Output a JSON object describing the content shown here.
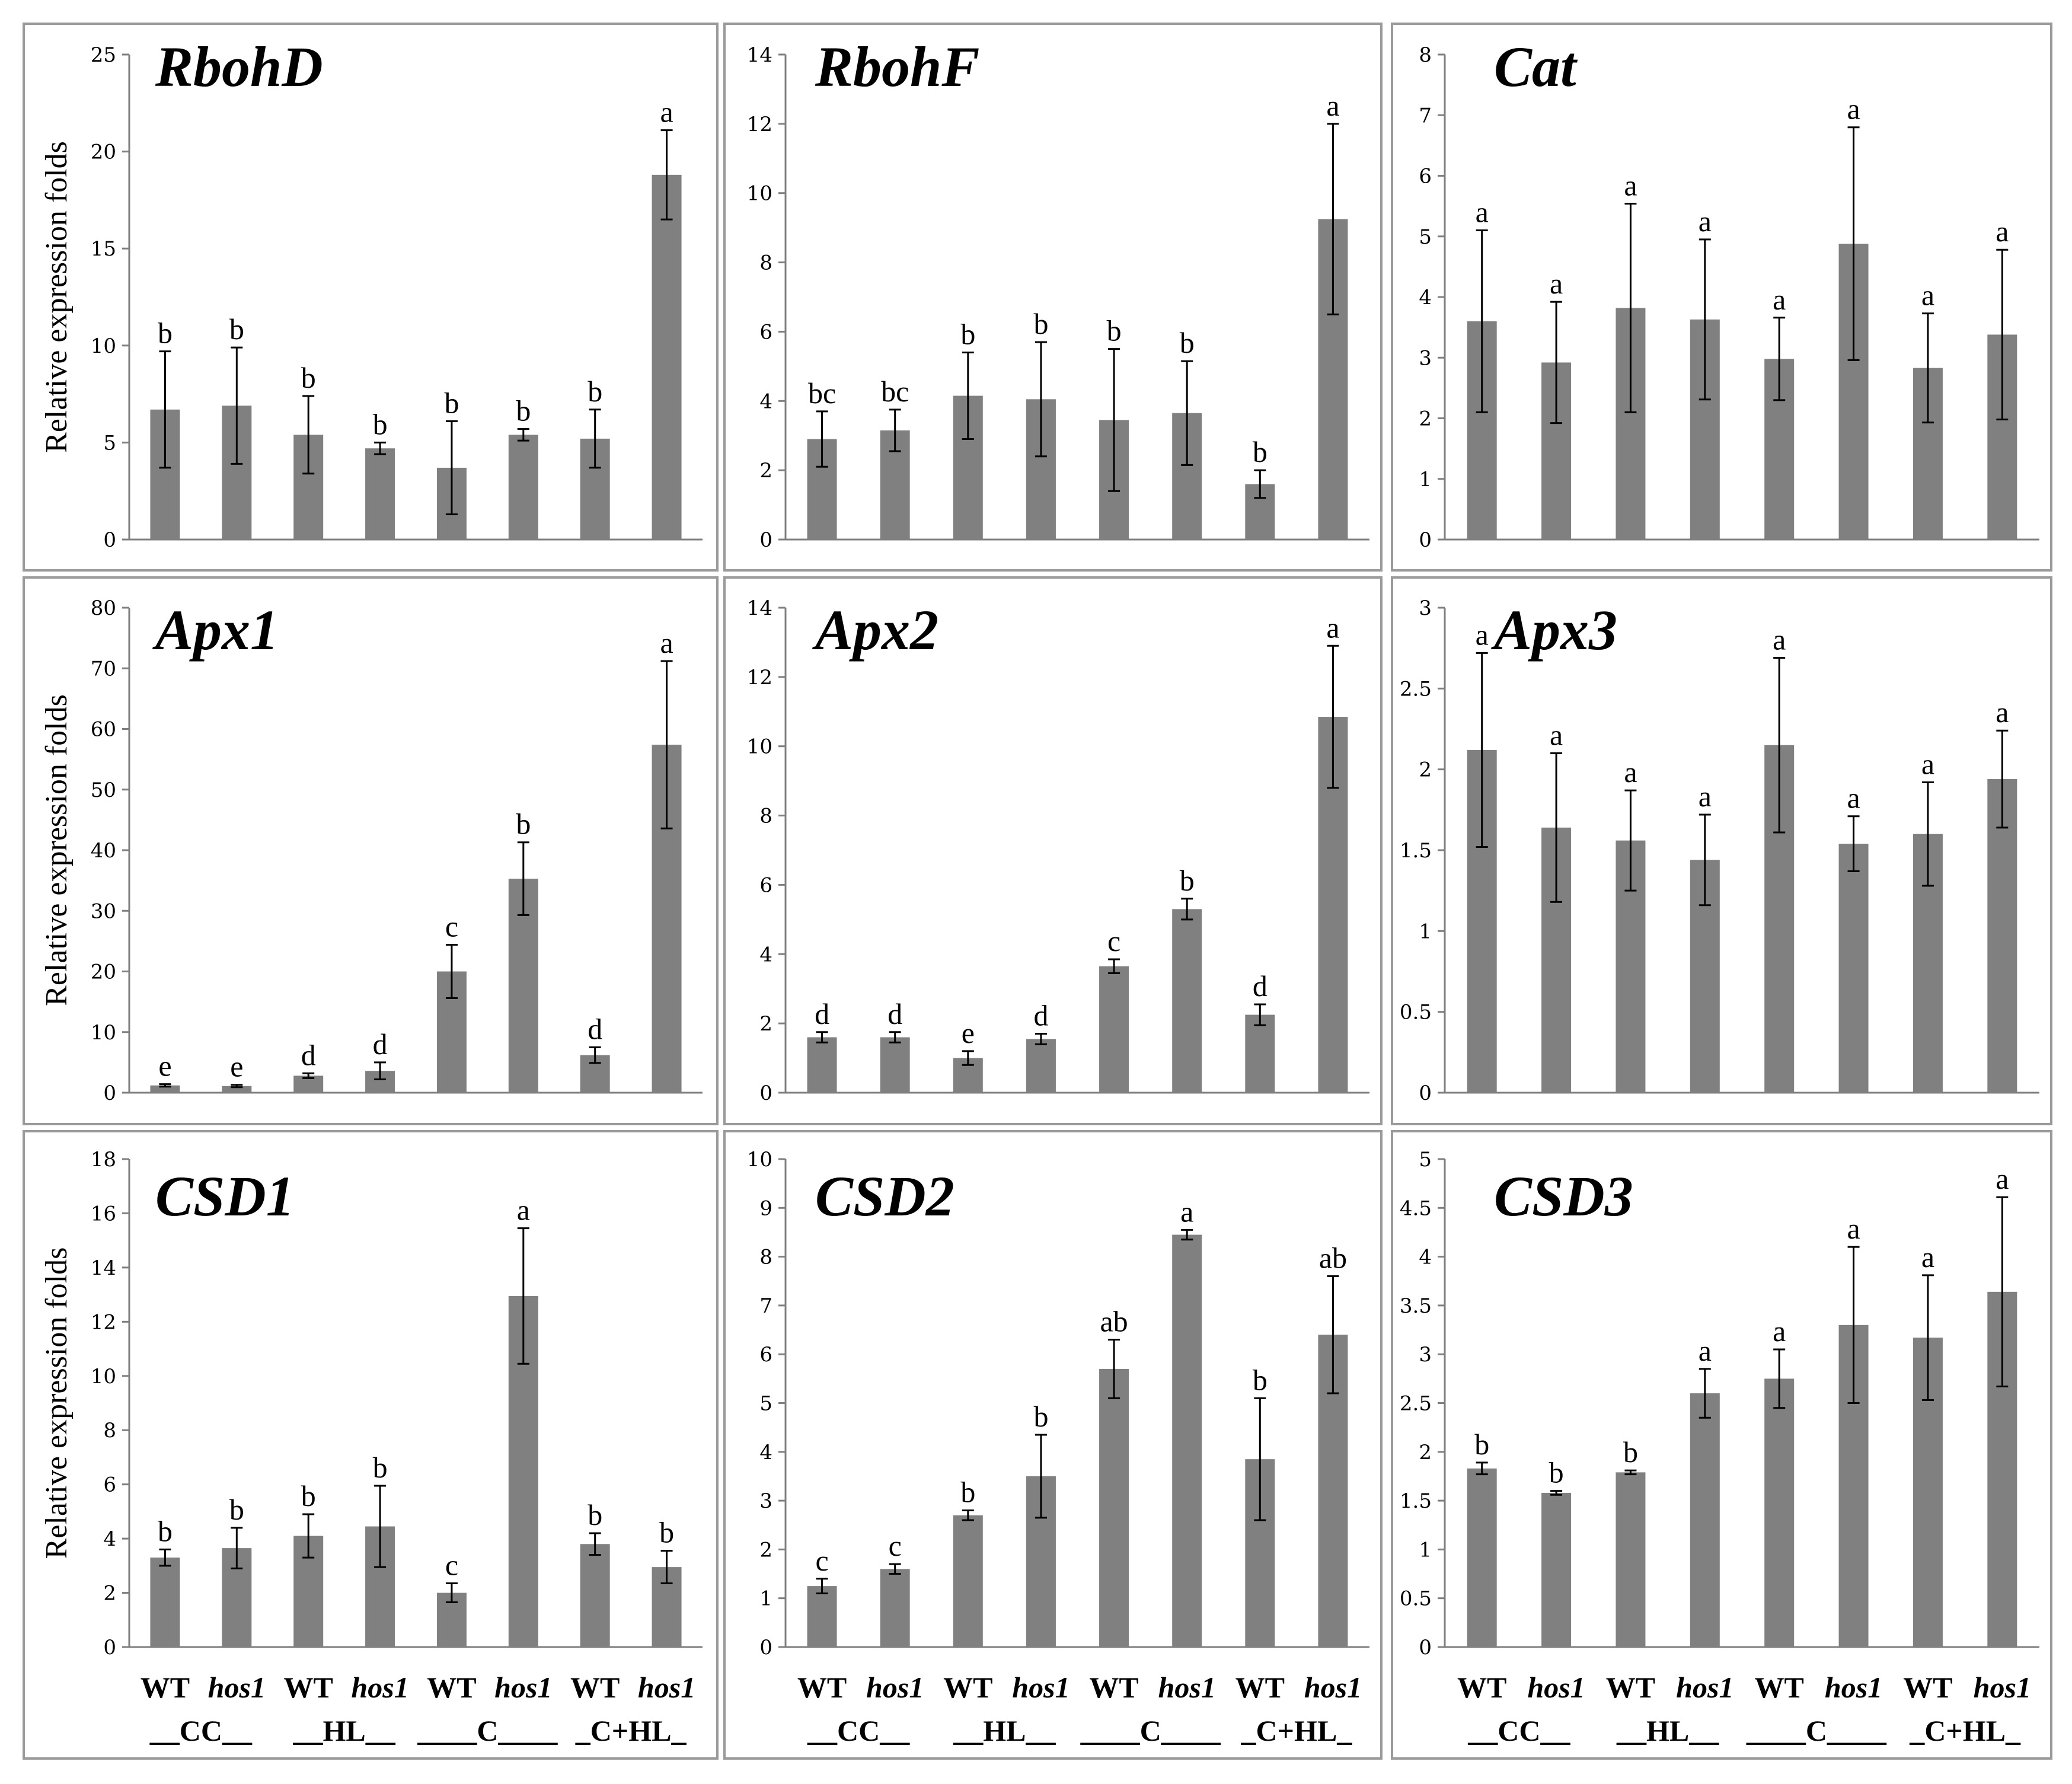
{
  "chart_data": [
    {
      "type": "bar",
      "title": "RbohD",
      "ylabel": "Relative expression folds",
      "ylim": [
        0,
        25
      ],
      "yticks": [
        "0",
        "5",
        "10",
        "15",
        "20",
        "25"
      ],
      "values": [
        6.7,
        6.9,
        5.4,
        4.7,
        3.7,
        5.4,
        5.2,
        18.8
      ],
      "errors": [
        3.0,
        3.0,
        2.0,
        0.3,
        2.4,
        0.3,
        1.5,
        2.3
      ],
      "letters": [
        "b",
        "b",
        "b",
        "b",
        "b",
        "b",
        "b",
        "a"
      ]
    },
    {
      "type": "bar",
      "title": "RbohF",
      "ylabel": "",
      "ylim": [
        0,
        14
      ],
      "yticks": [
        "0",
        "2",
        "4",
        "6",
        "8",
        "10",
        "12",
        "14"
      ],
      "values": [
        2.9,
        3.15,
        4.15,
        4.05,
        3.45,
        3.65,
        1.6,
        9.25
      ],
      "errors": [
        0.8,
        0.6,
        1.25,
        1.65,
        2.05,
        1.5,
        0.4,
        2.75
      ],
      "letters": [
        "bc",
        "bc",
        "b",
        "b",
        "b",
        "b",
        "b",
        "a"
      ]
    },
    {
      "type": "bar",
      "title": "Cat",
      "ylabel": "",
      "ylim": [
        0,
        8
      ],
      "yticks": [
        "0",
        "1",
        "2",
        "3",
        "4",
        "5",
        "6",
        "7",
        "8"
      ],
      "values": [
        3.6,
        2.92,
        3.82,
        3.63,
        2.98,
        4.88,
        2.83,
        3.38
      ],
      "errors": [
        1.5,
        1.0,
        1.72,
        1.32,
        0.68,
        1.92,
        0.9,
        1.4
      ],
      "letters": [
        "a",
        "a",
        "a",
        "a",
        "a",
        "a",
        "a",
        "a"
      ]
    },
    {
      "type": "bar",
      "title": "Apx1",
      "ylabel": "Relative expression folds",
      "ylim": [
        0,
        80
      ],
      "yticks": [
        "0",
        "10",
        "20",
        "30",
        "40",
        "50",
        "60",
        "70",
        "80"
      ],
      "values": [
        1.2,
        1.1,
        2.8,
        3.6,
        20.0,
        35.3,
        6.2,
        57.4
      ],
      "errors": [
        0.2,
        0.2,
        0.4,
        1.4,
        4.4,
        6.0,
        1.3,
        13.8
      ],
      "letters": [
        "e",
        "e",
        "d",
        "d",
        "c",
        "b",
        "d",
        "a"
      ]
    },
    {
      "type": "bar",
      "title": "Apx2",
      "ylabel": "",
      "ylim": [
        0,
        14
      ],
      "yticks": [
        "0",
        "2",
        "4",
        "6",
        "8",
        "10",
        "12",
        "14"
      ],
      "values": [
        1.6,
        1.6,
        1.0,
        1.55,
        3.65,
        5.3,
        2.25,
        10.85
      ],
      "errors": [
        0.15,
        0.15,
        0.2,
        0.15,
        0.2,
        0.3,
        0.3,
        2.05
      ],
      "letters": [
        "d",
        "d",
        "e",
        "d",
        "c",
        "b",
        "d",
        "a"
      ]
    },
    {
      "type": "bar",
      "title": "Apx3",
      "ylabel": "",
      "ylim": [
        0,
        3
      ],
      "yticks": [
        "0",
        "0.5",
        "1",
        "1.5",
        "2",
        "2.5",
        "3"
      ],
      "values": [
        2.12,
        1.64,
        1.56,
        1.44,
        2.15,
        1.54,
        1.6,
        1.94
      ],
      "errors": [
        0.6,
        0.46,
        0.31,
        0.28,
        0.54,
        0.17,
        0.32,
        0.3
      ],
      "letters": [
        "a",
        "a",
        "a",
        "a",
        "a",
        "a",
        "a",
        "a"
      ]
    },
    {
      "type": "bar",
      "title": "CSD1",
      "ylabel": "Relative expression folds",
      "ylim": [
        0,
        18
      ],
      "yticks": [
        "0",
        "2",
        "4",
        "6",
        "8",
        "10",
        "12",
        "14",
        "16",
        "18"
      ],
      "values": [
        3.3,
        3.65,
        4.1,
        4.45,
        2.0,
        12.95,
        3.8,
        2.95
      ],
      "errors": [
        0.3,
        0.75,
        0.8,
        1.5,
        0.35,
        2.5,
        0.4,
        0.6
      ],
      "letters": [
        "b",
        "b",
        "b",
        "b",
        "c",
        "a",
        "b",
        "b"
      ]
    },
    {
      "type": "bar",
      "title": "CSD2",
      "ylabel": "",
      "ylim": [
        0,
        10
      ],
      "yticks": [
        "0",
        "1",
        "2",
        "3",
        "4",
        "5",
        "6",
        "7",
        "8",
        "9",
        "10"
      ],
      "values": [
        1.25,
        1.6,
        2.7,
        3.5,
        5.7,
        8.45,
        3.85,
        6.4
      ],
      "errors": [
        0.15,
        0.1,
        0.1,
        0.85,
        0.6,
        0.1,
        1.25,
        1.2
      ],
      "letters": [
        "c",
        "c",
        "b",
        "b",
        "ab",
        "a",
        "b",
        "ab"
      ]
    },
    {
      "type": "bar",
      "title": "CSD3",
      "ylabel": "",
      "ylim": [
        0,
        5
      ],
      "yticks": [
        "0",
        "0.5",
        "1",
        "1.5",
        "2",
        "2.5",
        "3",
        "3.5",
        "4",
        "4.5",
        "5"
      ],
      "values": [
        1.83,
        1.58,
        1.79,
        2.6,
        2.75,
        3.3,
        3.17,
        3.64
      ],
      "errors": [
        0.06,
        0.02,
        0.02,
        0.25,
        0.3,
        0.8,
        0.64,
        0.97
      ],
      "letters": [
        "b",
        "b",
        "b",
        "a",
        "a",
        "a",
        "a",
        "a"
      ]
    }
  ],
  "x_axis": {
    "genotypes": [
      "WT",
      "hos1",
      "WT",
      "hos1",
      "WT",
      "hos1",
      "WT",
      "hos1"
    ],
    "groups": [
      "__CC__",
      "__HL__",
      "____C____",
      "_C+HL_"
    ]
  }
}
